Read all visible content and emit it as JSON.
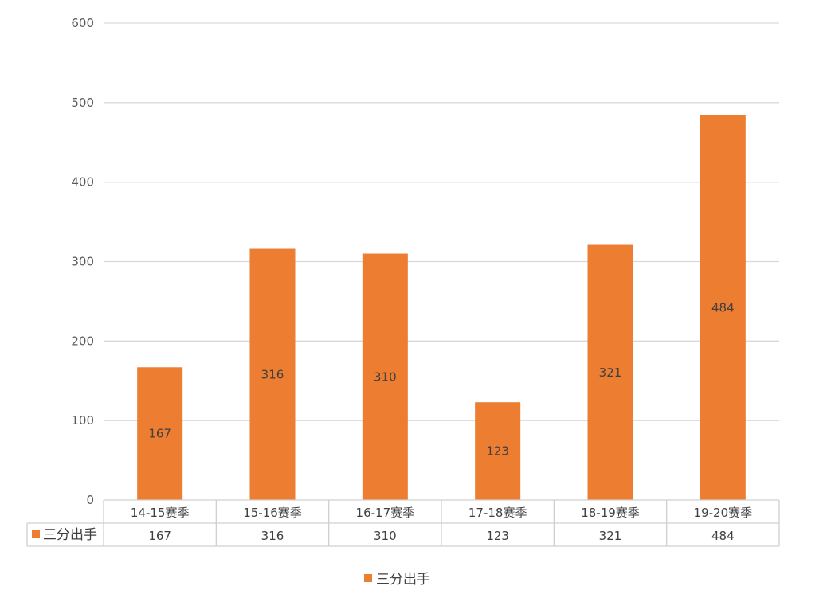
{
  "chart_data": {
    "type": "bar",
    "categories": [
      "14-15赛季",
      "15-16赛季",
      "16-17赛季",
      "17-18赛季",
      "18-19赛季",
      "19-20赛季"
    ],
    "series": [
      {
        "name": "三分出手",
        "values": [
          167,
          316,
          310,
          123,
          321,
          484
        ],
        "color": "#ED7D31"
      }
    ],
    "ylim": [
      0,
      600
    ],
    "yticks": [
      0,
      100,
      200,
      300,
      400,
      500,
      600
    ],
    "grid": true,
    "data_labels": true,
    "data_table": true,
    "legend": "bottom"
  }
}
